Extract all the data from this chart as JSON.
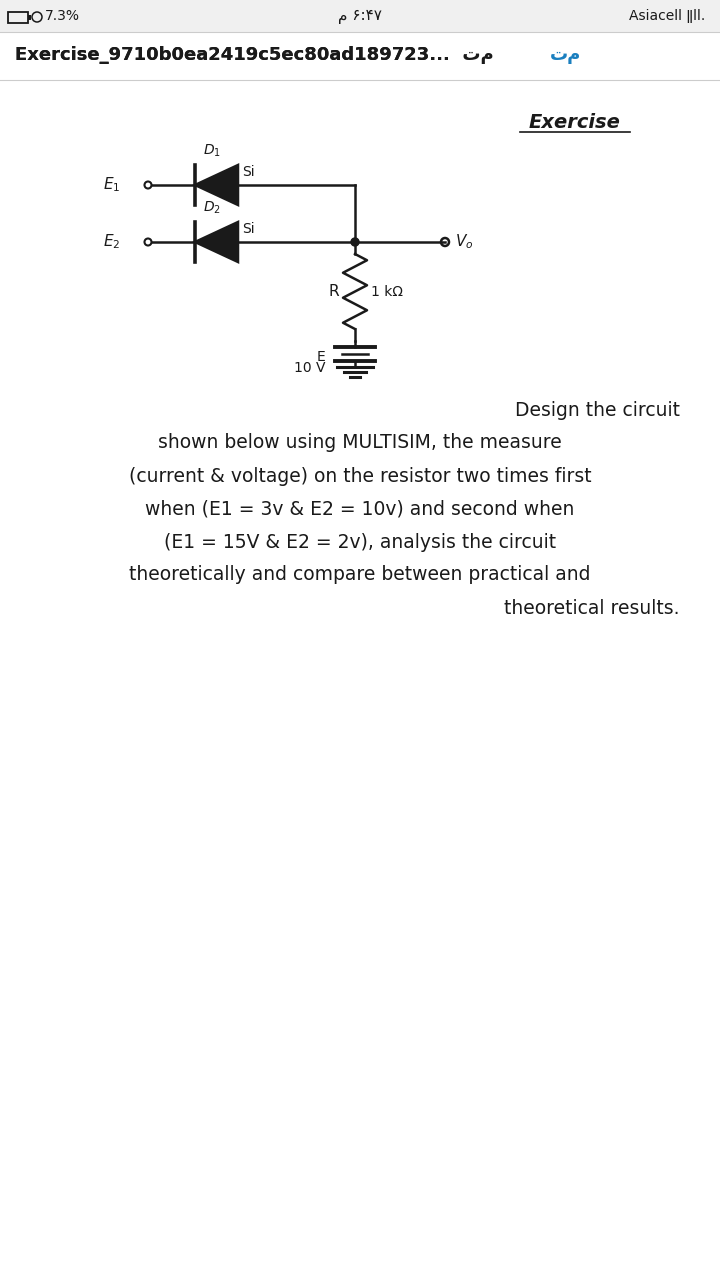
{
  "bg_color": "#f5f5f5",
  "status_left": "7.3%",
  "status_center": "م ۶:۴۷",
  "status_right": "Asiacell ǁll.",
  "title_bar_text": "Exercise_9710b0ea2419c5ec80ad189723...  تم",
  "exercise_label": "Exercise",
  "description_lines": [
    "Design the circuit",
    "shown below using MULTISIM, the measure",
    "(current & voltage) on the resistor two times first",
    "when (E1 = 3v & E2 = 10v) and second when",
    "(E1 = 15V & E2 = 2v), analysis the circuit",
    "theoretically and compare between practical and",
    "theoretical results."
  ],
  "desc_alignments": [
    "right",
    "center",
    "center",
    "center",
    "center",
    "center",
    "right"
  ],
  "circuit_color": "#1a1a1a",
  "text_color": "#1a1a1a",
  "bg_color2": "#ffffff"
}
